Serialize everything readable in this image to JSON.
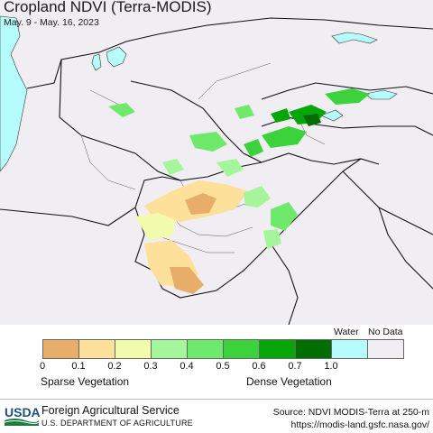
{
  "header": {
    "title": "Cropland NDVI (Terra-MODIS)",
    "date_range": "May. 9 - May. 16, 2023"
  },
  "legend": {
    "water_label": "Water",
    "nodata_label": "No Data",
    "bins": [
      {
        "color": "#e8ad69",
        "value": "0"
      },
      {
        "color": "#fde099",
        "value": "0.1"
      },
      {
        "color": "#f1fcad",
        "value": "0.2"
      },
      {
        "color": "#a5f59a",
        "value": "0.3"
      },
      {
        "color": "#6fe96b",
        "value": "0.4"
      },
      {
        "color": "#3bd23c",
        "value": "0.5"
      },
      {
        "color": "#07a608",
        "value": "0.6"
      },
      {
        "color": "#006e00",
        "value": "0.7"
      },
      {
        "color": "#b6fcfc",
        "value": "1.0"
      },
      {
        "color": "#f0eef2",
        "value": ""
      }
    ],
    "sparse_label": "Sparse Vegetation",
    "dense_label": "Dense Vegetation"
  },
  "map": {
    "land_color": "#f0eef2",
    "water_color": "#b6fcfc",
    "border_color": "#111111"
  },
  "footer": {
    "logo_text": "USDA",
    "org_name": "Foreign Agricultural Service",
    "dept_name": "U.S. DEPARTMENT OF AGRICULTURE",
    "source_line1": "Source: NDVI MODIS-Terra at 250-m",
    "source_line2": "https://modis-land.gsfc.nasa.gov/"
  }
}
